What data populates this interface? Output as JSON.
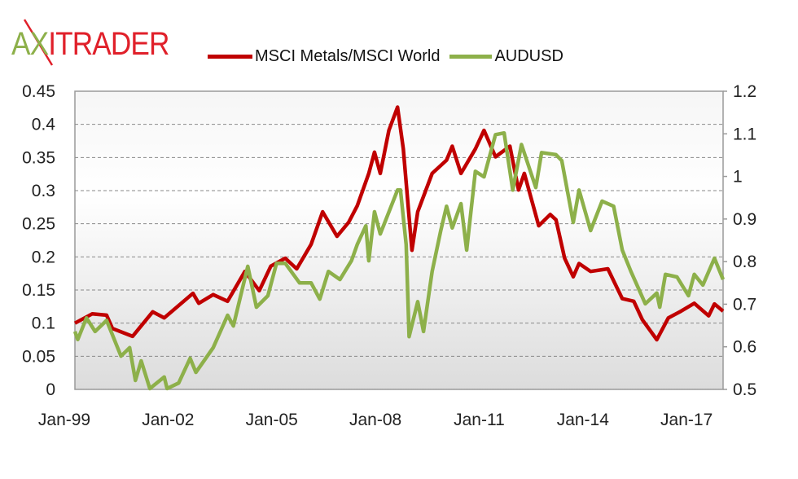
{
  "logo": {
    "text": "AXITRADER",
    "part_green": "A",
    "part_x": "X",
    "part_red": "ITRADER"
  },
  "chart_data": {
    "type": "line",
    "title": "",
    "legend_position": "top",
    "grid": true,
    "x_ticks": [
      "Jan-99",
      "Jan-02",
      "Jan-05",
      "Jan-08",
      "Jan-11",
      "Jan-14",
      "Jan-17"
    ],
    "xlim": [
      "1999-01",
      "2017-10"
    ],
    "y_left": {
      "lim": [
        0,
        0.45
      ],
      "ticks": [
        "0",
        "0.05",
        "0.1",
        "0.15",
        "0.2",
        "0.25",
        "0.3",
        "0.35",
        "0.4",
        "0.45"
      ]
    },
    "y_right": {
      "lim": [
        0.5,
        1.2
      ],
      "ticks": [
        "0.5",
        "0.6",
        "0.7",
        "0.8",
        "0.9",
        "1",
        "1.1",
        "1.2"
      ]
    },
    "series": [
      {
        "name": "MSCI Metals/MSCI World",
        "axis": "left",
        "color": "#c00000",
        "points": [
          [
            "1999-01",
            0.1
          ],
          [
            "1999-07",
            0.114
          ],
          [
            "1999-12",
            0.112
          ],
          [
            "2000-02",
            0.092
          ],
          [
            "2000-09",
            0.08
          ],
          [
            "2001-04",
            0.117
          ],
          [
            "2001-08",
            0.108
          ],
          [
            "2002-06",
            0.145
          ],
          [
            "2002-08",
            0.13
          ],
          [
            "2003-01",
            0.143
          ],
          [
            "2003-06",
            0.133
          ],
          [
            "2003-12",
            0.178
          ],
          [
            "2004-05",
            0.149
          ],
          [
            "2004-09",
            0.186
          ],
          [
            "2005-02",
            0.198
          ],
          [
            "2005-06",
            0.182
          ],
          [
            "2005-11",
            0.219
          ],
          [
            "2006-03",
            0.268
          ],
          [
            "2006-08",
            0.231
          ],
          [
            "2006-12",
            0.252
          ],
          [
            "2007-03",
            0.277
          ],
          [
            "2007-07",
            0.326
          ],
          [
            "2007-09",
            0.358
          ],
          [
            "2007-11",
            0.326
          ],
          [
            "2008-02",
            0.391
          ],
          [
            "2008-05",
            0.426
          ],
          [
            "2008-07",
            0.363
          ],
          [
            "2008-09",
            0.26
          ],
          [
            "2008-10",
            0.21
          ],
          [
            "2008-12",
            0.268
          ],
          [
            "2009-05",
            0.326
          ],
          [
            "2009-10",
            0.346
          ],
          [
            "2009-12",
            0.367
          ],
          [
            "2010-03",
            0.326
          ],
          [
            "2010-08",
            0.363
          ],
          [
            "2010-11",
            0.391
          ],
          [
            "2011-03",
            0.351
          ],
          [
            "2011-08",
            0.367
          ],
          [
            "2011-11",
            0.301
          ],
          [
            "2012-01",
            0.326
          ],
          [
            "2012-06",
            0.247
          ],
          [
            "2012-10",
            0.264
          ],
          [
            "2012-12",
            0.256
          ],
          [
            "2013-03",
            0.198
          ],
          [
            "2013-06",
            0.17
          ],
          [
            "2013-08",
            0.19
          ],
          [
            "2013-12",
            0.178
          ],
          [
            "2014-06",
            0.182
          ],
          [
            "2014-11",
            0.137
          ],
          [
            "2015-03",
            0.133
          ],
          [
            "2015-06",
            0.105
          ],
          [
            "2015-11",
            0.075
          ],
          [
            "2016-03",
            0.108
          ],
          [
            "2016-07",
            0.117
          ],
          [
            "2016-12",
            0.13
          ],
          [
            "2017-05",
            0.111
          ],
          [
            "2017-07",
            0.129
          ],
          [
            "2017-10",
            0.118
          ]
        ]
      },
      {
        "name": "AUDUSD",
        "axis": "right",
        "color": "#8db04a",
        "points": [
          [
            "1999-01",
            0.636
          ],
          [
            "1999-02",
            0.617
          ],
          [
            "1999-05",
            0.668
          ],
          [
            "1999-08",
            0.636
          ],
          [
            "1999-12",
            0.662
          ],
          [
            "2000-05",
            0.578
          ],
          [
            "2000-08",
            0.598
          ],
          [
            "2000-10",
            0.521
          ],
          [
            "2000-12",
            0.567
          ],
          [
            "2001-03",
            0.502
          ],
          [
            "2001-08",
            0.529
          ],
          [
            "2001-09",
            0.502
          ],
          [
            "2002-01",
            0.515
          ],
          [
            "2002-05",
            0.573
          ],
          [
            "2002-07",
            0.54
          ],
          [
            "2003-01",
            0.598
          ],
          [
            "2003-06",
            0.674
          ],
          [
            "2003-08",
            0.649
          ],
          [
            "2004-01",
            0.789
          ],
          [
            "2004-04",
            0.693
          ],
          [
            "2004-08",
            0.72
          ],
          [
            "2004-11",
            0.796
          ],
          [
            "2005-02",
            0.796
          ],
          [
            "2005-07",
            0.75
          ],
          [
            "2005-11",
            0.75
          ],
          [
            "2006-02",
            0.712
          ],
          [
            "2006-05",
            0.777
          ],
          [
            "2006-09",
            0.758
          ],
          [
            "2007-01",
            0.802
          ],
          [
            "2007-03",
            0.84
          ],
          [
            "2007-06",
            0.884
          ],
          [
            "2007-07",
            0.802
          ],
          [
            "2007-09",
            0.917
          ],
          [
            "2007-11",
            0.865
          ],
          [
            "2008-05",
            0.968
          ],
          [
            "2008-06",
            0.968
          ],
          [
            "2008-08",
            0.84
          ],
          [
            "2008-09",
            0.624
          ],
          [
            "2008-12",
            0.706
          ],
          [
            "2009-02",
            0.636
          ],
          [
            "2009-05",
            0.777
          ],
          [
            "2009-08",
            0.873
          ],
          [
            "2009-10",
            0.93
          ],
          [
            "2009-12",
            0.879
          ],
          [
            "2010-03",
            0.936
          ],
          [
            "2010-05",
            0.827
          ],
          [
            "2010-08",
            1.012
          ],
          [
            "2010-11",
            0.999
          ],
          [
            "2011-03",
            1.098
          ],
          [
            "2011-06",
            1.102
          ],
          [
            "2011-09",
            0.968
          ],
          [
            "2011-12",
            1.075
          ],
          [
            "2012-05",
            0.974
          ],
          [
            "2012-07",
            1.056
          ],
          [
            "2012-12",
            1.051
          ],
          [
            "2013-02",
            1.037
          ],
          [
            "2013-06",
            0.892
          ],
          [
            "2013-08",
            0.968
          ],
          [
            "2013-12",
            0.873
          ],
          [
            "2014-04",
            0.942
          ],
          [
            "2014-08",
            0.93
          ],
          [
            "2014-11",
            0.827
          ],
          [
            "2015-02",
            0.777
          ],
          [
            "2015-07",
            0.701
          ],
          [
            "2015-11",
            0.726
          ],
          [
            "2015-12",
            0.693
          ],
          [
            "2016-02",
            0.77
          ],
          [
            "2016-06",
            0.764
          ],
          [
            "2016-10",
            0.72
          ],
          [
            "2016-12",
            0.77
          ],
          [
            "2017-03",
            0.745
          ],
          [
            "2017-07",
            0.808
          ],
          [
            "2017-10",
            0.758
          ]
        ]
      }
    ]
  }
}
